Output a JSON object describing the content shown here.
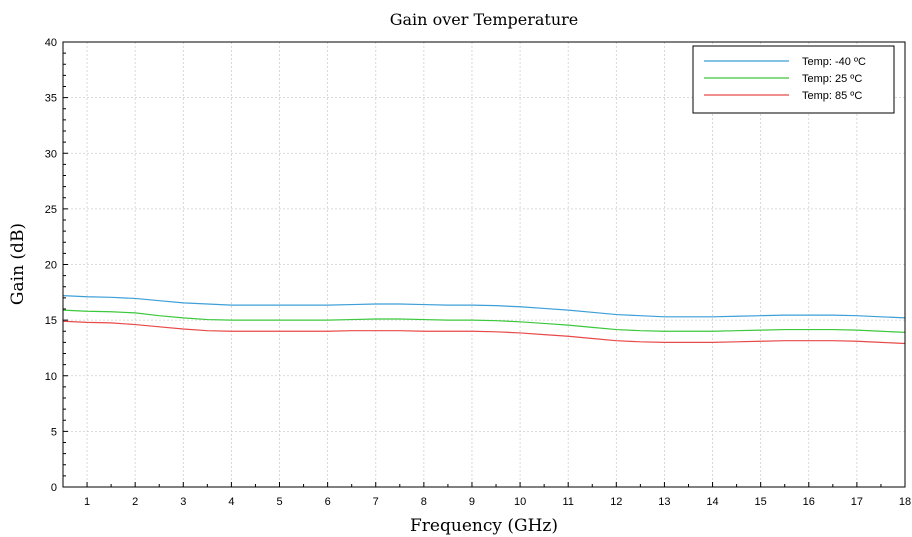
{
  "chart_data": {
    "type": "line",
    "title": "Gain over Temperature",
    "xlabel": "Frequency (GHz)",
    "ylabel": "Gain (dB)",
    "xlim": [
      0.5,
      18
    ],
    "ylim": [
      0,
      40
    ],
    "xticks": [
      1,
      2,
      3,
      4,
      5,
      6,
      7,
      8,
      9,
      10,
      11,
      12,
      13,
      14,
      15,
      16,
      17,
      18
    ],
    "yticks": [
      0,
      5,
      10,
      15,
      20,
      25,
      30,
      35,
      40
    ],
    "grid": true,
    "legend_position": "top-right",
    "x": [
      0.5,
      1,
      1.5,
      2,
      2.5,
      3,
      3.5,
      4,
      4.5,
      5,
      5.5,
      6,
      6.5,
      7,
      7.5,
      8,
      8.5,
      9,
      9.5,
      10,
      10.5,
      11,
      11.5,
      12,
      12.5,
      13,
      13.5,
      14,
      14.5,
      15,
      15.5,
      16,
      16.5,
      17,
      17.5,
      18
    ],
    "series": [
      {
        "name": "Temp: -40 ºC",
        "color": "#3c9fd8",
        "values": [
          17.2,
          17.1,
          17.05,
          16.95,
          16.75,
          16.55,
          16.45,
          16.35,
          16.35,
          16.35,
          16.35,
          16.35,
          16.4,
          16.45,
          16.45,
          16.4,
          16.35,
          16.35,
          16.3,
          16.2,
          16.05,
          15.9,
          15.7,
          15.5,
          15.4,
          15.3,
          15.3,
          15.3,
          15.35,
          15.4,
          15.45,
          15.45,
          15.45,
          15.4,
          15.3,
          15.2
        ]
      },
      {
        "name": "Temp: 25 ºC",
        "color": "#3cc83c",
        "values": [
          15.9,
          15.8,
          15.75,
          15.65,
          15.4,
          15.2,
          15.05,
          15.0,
          15.0,
          15.0,
          15.0,
          15.0,
          15.05,
          15.1,
          15.1,
          15.05,
          15.0,
          15.0,
          14.95,
          14.85,
          14.7,
          14.55,
          14.35,
          14.15,
          14.05,
          14.0,
          14.0,
          14.0,
          14.05,
          14.1,
          14.15,
          14.15,
          14.15,
          14.1,
          14.0,
          13.9
        ]
      },
      {
        "name": "Temp: 85 ºC",
        "color": "#e84a4a",
        "values": [
          14.9,
          14.8,
          14.75,
          14.6,
          14.4,
          14.2,
          14.05,
          14.0,
          14.0,
          14.0,
          14.0,
          14.0,
          14.05,
          14.05,
          14.05,
          14.0,
          14.0,
          14.0,
          13.95,
          13.85,
          13.7,
          13.55,
          13.35,
          13.15,
          13.05,
          13.0,
          13.0,
          13.0,
          13.05,
          13.1,
          13.15,
          13.15,
          13.15,
          13.1,
          13.0,
          12.9
        ]
      }
    ]
  }
}
